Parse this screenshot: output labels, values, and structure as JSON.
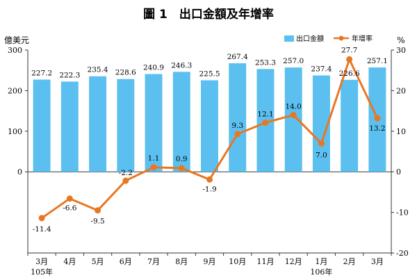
{
  "chart_data": {
    "type": "bar+line",
    "title": "圖 1　出口金額及年增率",
    "left_unit": "億美元",
    "right_unit": "%",
    "categories": [
      "3月",
      "4月",
      "5月",
      "6月",
      "7月",
      "8月",
      "9月",
      "10月",
      "11月",
      "12月",
      "1月",
      "2月",
      "3月"
    ],
    "year_labels": [
      {
        "index": 0,
        "text": "105年"
      },
      {
        "index": 10,
        "text": "106年"
      }
    ],
    "series": [
      {
        "name": "出口金額",
        "kind": "bar",
        "axis": "left",
        "color": "#5bc0f0",
        "values": [
          227.2,
          222.3,
          235.4,
          228.6,
          240.9,
          246.3,
          225.5,
          267.4,
          253.3,
          257.0,
          237.4,
          226.6,
          257.1
        ],
        "labels": [
          "227.2",
          "222.3",
          "235.4",
          "228.6",
          "240.9",
          "246.3",
          "225.5",
          "267.4",
          "253.3",
          "257.0",
          "237.4",
          "226.6",
          "257.1"
        ]
      },
      {
        "name": "年增率",
        "kind": "line",
        "axis": "right",
        "color": "#e87722",
        "values": [
          -11.4,
          -6.6,
          -9.5,
          -2.2,
          1.1,
          0.9,
          -1.9,
          9.3,
          12.1,
          14.0,
          7.0,
          27.7,
          13.2
        ],
        "labels": [
          "-11.4",
          "-6.6",
          "-9.5",
          "-2.2",
          "1.1",
          "0.9",
          "-1.9",
          "9.3",
          "12.1",
          "14.0",
          "7.0",
          "27.7",
          "13.2"
        ]
      }
    ],
    "left_axis": {
      "ylim": [
        -200,
        300
      ],
      "ticks": [
        0,
        100,
        200,
        300
      ],
      "tick_labels": [
        "0",
        "100",
        "200",
        "300"
      ]
    },
    "right_axis": {
      "ylim": [
        -20,
        30
      ],
      "ticks": [
        -20,
        -10,
        0,
        10,
        20,
        30
      ],
      "tick_labels": [
        "-20",
        "-10",
        "0",
        "10",
        "20",
        "30"
      ]
    },
    "legend_position": "top-right",
    "grid": false
  }
}
